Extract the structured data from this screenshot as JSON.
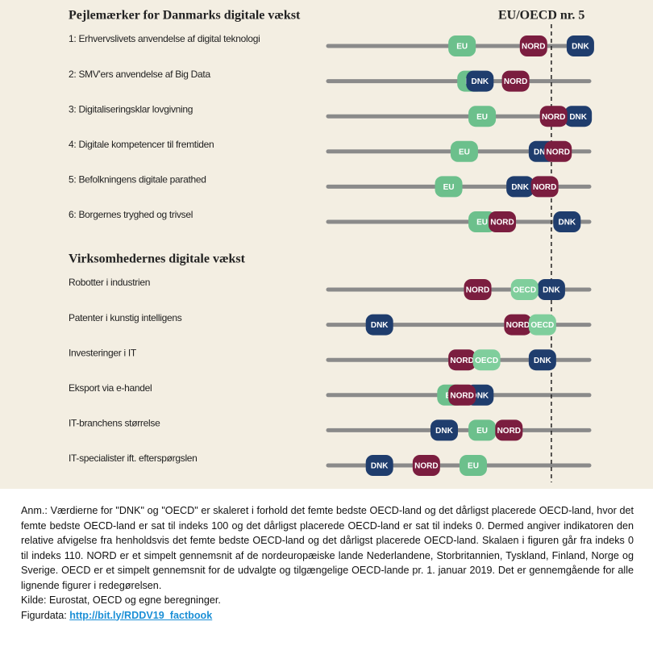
{
  "chart_data": [
    {
      "type": "dot",
      "title": "Pejlemærker for Danmarks digitale vækst",
      "reference": {
        "label": "EU/OECD nr. 5",
        "value": 100
      },
      "xlim": [
        0,
        117
      ],
      "categories": [
        "1: Erhvervslivets anvendelse af digital teknologi",
        "2: SMV'ers anvendelse af Big Data",
        "3: Digitaliseringsklar lovgivning",
        "4: Digitale kompetencer til fremtiden",
        "5: Befolkningens digitale parathed",
        "6: Borgernes tryghed og trivsel"
      ],
      "series": [
        {
          "name": "EU",
          "color": "#6cc08c",
          "values": [
            60,
            64,
            69,
            61,
            54,
            69
          ]
        },
        {
          "name": "DNK",
          "color": "#1f3d6d",
          "values": [
            113,
            68,
            112,
            96,
            86,
            107
          ]
        },
        {
          "name": "NORD",
          "color": "#7b1d3f",
          "values": [
            92,
            84,
            101,
            103,
            97,
            78
          ]
        }
      ]
    },
    {
      "type": "dot",
      "title": "Virksomhedernes digitale vækst",
      "xlim": [
        0,
        117
      ],
      "categories": [
        "Robotter i industrien",
        "Patenter i kunstig intelligens",
        "Investeringer i IT",
        "Eksport via e-handel",
        "IT-branchens størrelse",
        "IT-specialister ift. efterspørgslen"
      ],
      "series": [
        {
          "name": "EU",
          "color": "#6cc08c",
          "values": [
            null,
            null,
            null,
            55,
            69,
            65
          ]
        },
        {
          "name": "DNK",
          "color": "#1f3d6d",
          "values": [
            100,
            23,
            96,
            68,
            52,
            23
          ]
        },
        {
          "name": "NORD",
          "color": "#7b1d3f",
          "values": [
            67,
            85,
            60,
            60,
            81,
            44
          ]
        },
        {
          "name": "OECD",
          "color": "#7fce9c",
          "values": [
            88,
            96,
            71,
            null,
            null,
            null
          ]
        }
      ]
    }
  ],
  "notes": {
    "text": "Anm.: Værdierne for \"DNK\" og \"OECD\" er skaleret i forhold det femte bedste OECD-land og det dårligst placerede OECD-land, hvor det femte bedste OECD-land er sat til indeks 100 og det dårligst placerede OECD-land er sat til indeks 0. Dermed angiver indikatoren den relative afvigelse fra henholdsvis det femte bedste OECD-land og det dårligst placerede OECD-land. Skalaen i figuren går fra indeks 0 til indeks 110. NORD er et simpelt gennemsnit af de nordeuropæiske lande Nederlandene, Storbritannien, Tyskland, Finland, Norge og Sverige. OECD er et simpelt gennemsnit for de udvalgte og tilgængelige OECD-lande pr. 1. januar 2019. Det er gennemgående for alle lignende figurer i redegørelsen.",
    "source": "Kilde: Eurostat, OECD og egne beregninger.",
    "figdata_label": "Figurdata:",
    "link": "http://bit.ly/RDDV19_factbook"
  }
}
